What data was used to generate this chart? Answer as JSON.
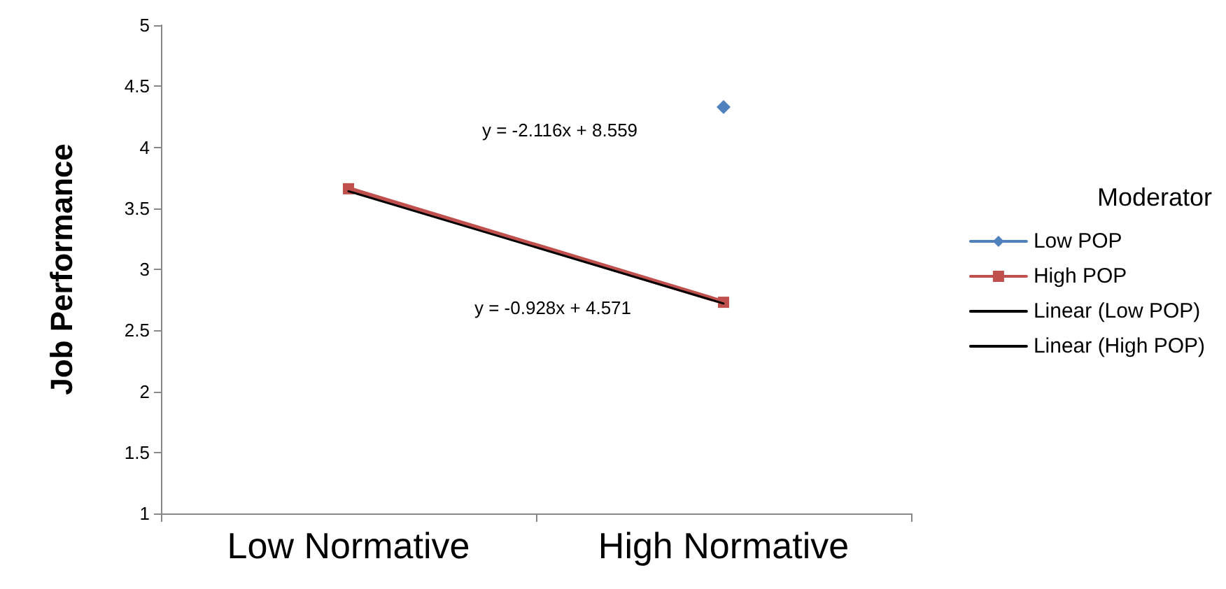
{
  "chart_data": {
    "type": "line",
    "ylabel": "Job Performance",
    "legend_title": "Moderator",
    "legend": "right",
    "grid": false,
    "categories": [
      "Low Normative",
      "High Normative"
    ],
    "ylim": [
      1,
      5
    ],
    "yticks": [
      1,
      1.5,
      2,
      2.5,
      3,
      3.5,
      4,
      4.5,
      5
    ],
    "series": [
      {
        "name": "Low POP",
        "color": "#4f81bd",
        "marker": "diamond",
        "values": [
          null,
          4.33
        ]
      },
      {
        "name": "High POP",
        "color": "#c0504d",
        "marker": "square",
        "values": [
          3.66,
          2.73
        ]
      },
      {
        "name": "Linear (Low POP)",
        "color": "#000000",
        "marker": "none",
        "values": [
          null,
          null
        ]
      },
      {
        "name": "Linear (High POP)",
        "color": "#000000",
        "marker": "none",
        "values": [
          3.64,
          2.72
        ]
      }
    ],
    "annotations": [
      "y = -2.116x + 8.559",
      "y = -0.928x + 4.571"
    ]
  }
}
